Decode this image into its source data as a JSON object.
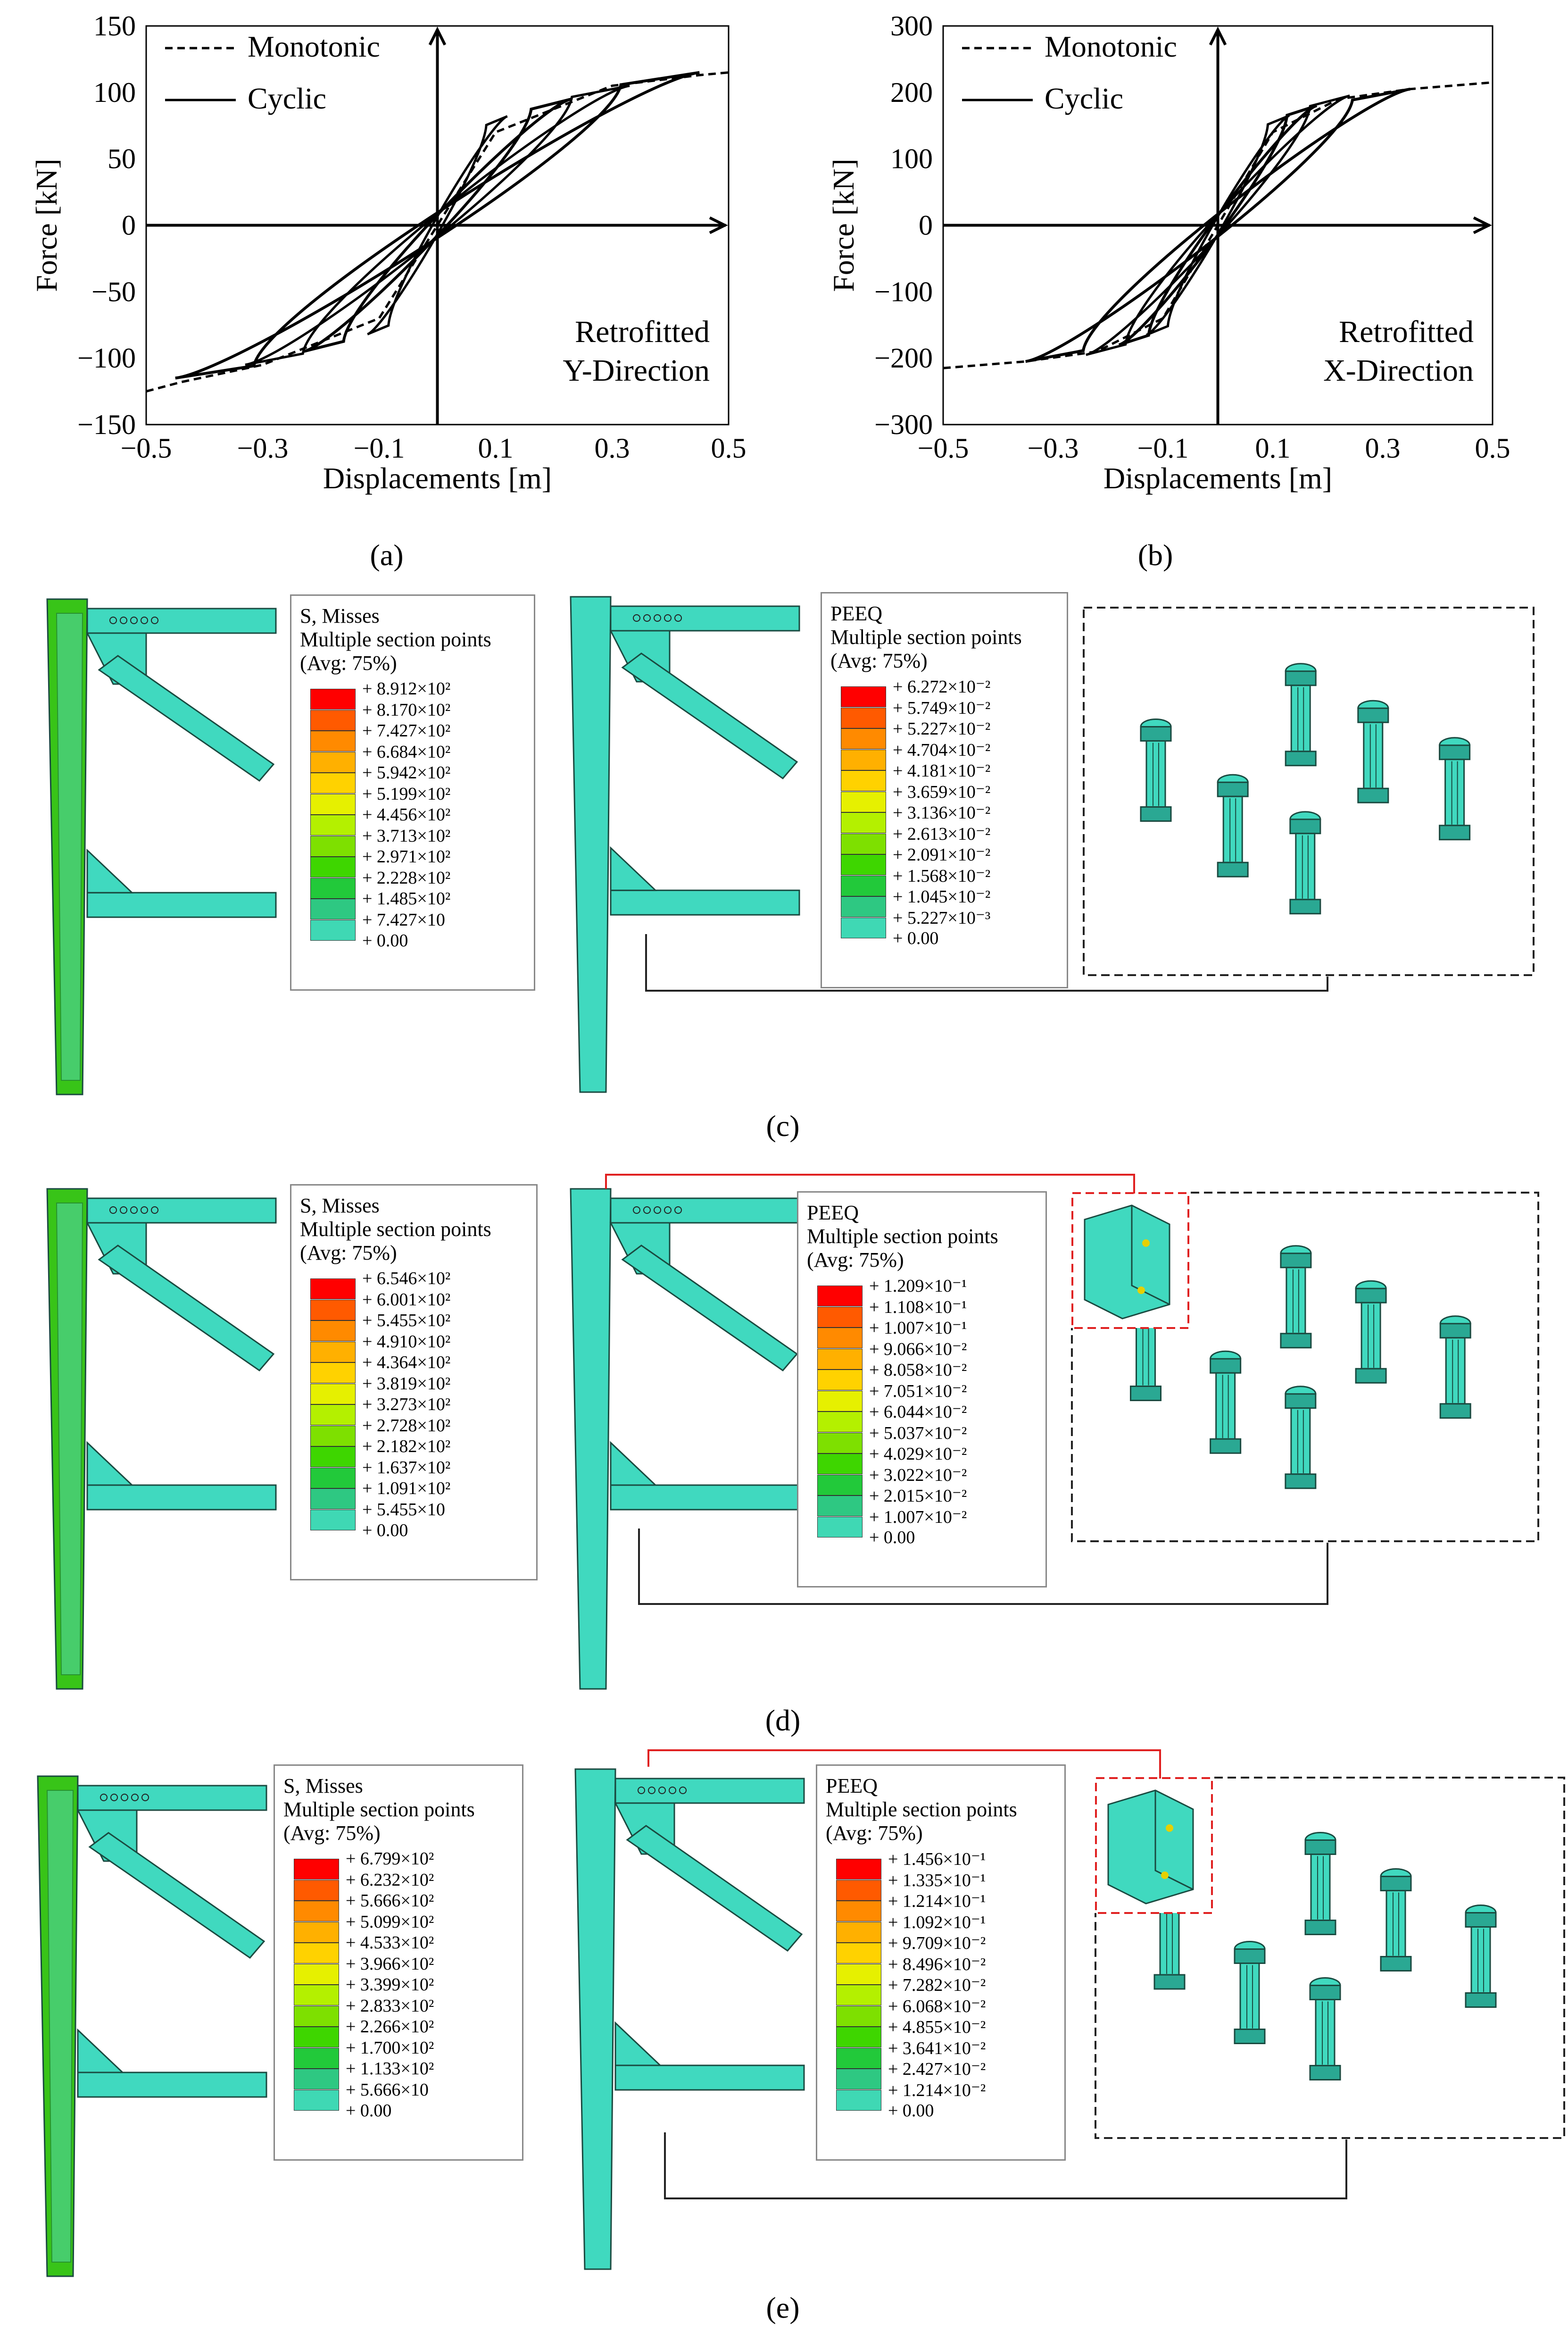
{
  "chart_data": [
    {
      "type": "line",
      "panel": "(a)",
      "xlabel": "Displacements [m]",
      "ylabel": "Force [kN]",
      "xlim": [
        -0.5,
        0.5
      ],
      "ylim": [
        -150,
        150
      ],
      "xticks": [
        "−0.5",
        "−0.3",
        "−0.1",
        "0.1",
        "0.3",
        "0.5"
      ],
      "yticks": [
        "150",
        "100",
        "50",
        "0",
        "−50",
        "−100",
        "−150"
      ],
      "annotation": [
        "Retrofitted",
        "Y-Direction"
      ],
      "legend": [
        "Monotonic",
        "Cyclic"
      ],
      "series": [
        {
          "name": "Monotonic",
          "x": [
            -0.5,
            -0.44,
            -0.3,
            -0.1,
            0.0,
            0.1,
            0.3,
            0.45,
            0.5
          ],
          "y": [
            -125,
            -118,
            -105,
            -70,
            0,
            70,
            105,
            113,
            115
          ]
        },
        {
          "name": "Cyclic",
          "loops": [
            {
              "dmax": 0.12,
              "fmax": 82
            },
            {
              "dmax": 0.23,
              "fmax": 95
            },
            {
              "dmax": 0.33,
              "fmax": 105
            },
            {
              "dmax": 0.45,
              "fmax": 115
            }
          ]
        }
      ]
    },
    {
      "type": "line",
      "panel": "(b)",
      "xlabel": "Displacements [m]",
      "ylabel": "Force [kN]",
      "xlim": [
        -0.5,
        0.5
      ],
      "ylim": [
        -300,
        300
      ],
      "xticks": [
        "−0.5",
        "−0.3",
        "−0.1",
        "0.1",
        "0.3",
        "0.5"
      ],
      "yticks": [
        "300",
        "200",
        "100",
        "0",
        "−100",
        "−200",
        "−300"
      ],
      "annotation": [
        "Retrofitted",
        "X-Direction"
      ],
      "legend": [
        "Monotonic",
        "Cyclic"
      ],
      "series": [
        {
          "name": "Monotonic",
          "x": [
            -0.5,
            -0.35,
            -0.22,
            -0.1,
            0.0,
            0.1,
            0.22,
            0.35,
            0.5
          ],
          "y": [
            -215,
            -205,
            -190,
            -140,
            0,
            140,
            190,
            205,
            215
          ]
        },
        {
          "name": "Cyclic",
          "loops": [
            {
              "dmax": 0.13,
              "fmax": 165
            },
            {
              "dmax": 0.18,
              "fmax": 180
            },
            {
              "dmax": 0.24,
              "fmax": 195
            },
            {
              "dmax": 0.35,
              "fmax": 205
            }
          ]
        }
      ]
    }
  ],
  "captions": {
    "a": "(a)",
    "b": "(b)",
    "c": "(c)",
    "d": "(d)",
    "e": "(e)"
  },
  "colors": {
    "scale": [
      "#ff0000",
      "#ff5a00",
      "#ff8a00",
      "#ffb000",
      "#ffd200",
      "#e6f000",
      "#b4f000",
      "#7ee000",
      "#3ed600",
      "#22c93a",
      "#2ec882",
      "#3fd8b4",
      "#2af0e8"
    ],
    "steel": "#40d9bf",
    "steel_dark": "#2aa893",
    "stress_green": "#38c418"
  },
  "icons": {
    "bolt": "bolt-cylinder-icon"
  },
  "legends": {
    "c_stress": {
      "title": "S, Misses",
      "sub": "Multiple section points",
      "avg": "(Avg: 75%)",
      "values": [
        "+ 8.912×10²",
        "+ 8.170×10²",
        "+ 7.427×10²",
        "+ 6.684×10²",
        "+ 5.942×10²",
        "+ 5.199×10²",
        "+ 4.456×10²",
        "+ 3.713×10²",
        "+ 2.971×10²",
        "+ 2.228×10²",
        "+ 1.485×10²",
        "+ 7.427×10",
        "+ 0.00"
      ]
    },
    "c_peeq": {
      "title": "PEEQ",
      "sub": "Multiple section points",
      "avg": "(Avg: 75%)",
      "values": [
        "+ 6.272×10⁻²",
        "+ 5.749×10⁻²",
        "+ 5.227×10⁻²",
        "+ 4.704×10⁻²",
        "+ 4.181×10⁻²",
        "+ 3.659×10⁻²",
        "+ 3.136×10⁻²",
        "+ 2.613×10⁻²",
        "+ 2.091×10⁻²",
        "+ 1.568×10⁻²",
        "+ 1.045×10⁻²",
        "+ 5.227×10⁻³",
        "+ 0.00"
      ]
    },
    "d_stress": {
      "title": "S, Misses",
      "sub": "Multiple section points",
      "avg": "(Avg: 75%)",
      "values": [
        "+ 6.546×10²",
        "+ 6.001×10²",
        "+ 5.455×10²",
        "+ 4.910×10²",
        "+ 4.364×10²",
        "+ 3.819×10²",
        "+ 3.273×10²",
        "+ 2.728×10²",
        "+ 2.182×10²",
        "+ 1.637×10²",
        "+ 1.091×10²",
        "+ 5.455×10",
        "+ 0.00"
      ]
    },
    "d_peeq": {
      "title": "PEEQ",
      "sub": "Multiple section points",
      "avg": "(Avg: 75%)",
      "values": [
        "+ 1.209×10⁻¹",
        "+ 1.108×10⁻¹",
        "+ 1.007×10⁻¹",
        "+ 9.066×10⁻²",
        "+ 8.058×10⁻²",
        "+ 7.051×10⁻²",
        "+ 6.044×10⁻²",
        "+ 5.037×10⁻²",
        "+ 4.029×10⁻²",
        "+ 3.022×10⁻²",
        "+ 2.015×10⁻²",
        "+ 1.007×10⁻²",
        "+ 0.00"
      ]
    },
    "e_stress": {
      "title": "S, Misses",
      "sub": "Multiple section points",
      "avg": "(Avg: 75%)",
      "values": [
        "+ 6.799×10²",
        "+ 6.232×10²",
        "+ 5.666×10²",
        "+ 5.099×10²",
        "+ 4.533×10²",
        "+ 3.966×10²",
        "+ 3.399×10²",
        "+ 2.833×10²",
        "+ 2.266×10²",
        "+ 1.700×10²",
        "+ 1.133×10²",
        "+ 5.666×10",
        "+ 0.00"
      ]
    },
    "e_peeq": {
      "title": "PEEQ",
      "sub": "Multiple section points",
      "avg": "(Avg: 75%)",
      "values": [
        "+ 1.456×10⁻¹",
        "+ 1.335×10⁻¹",
        "+ 1.214×10⁻¹",
        "+ 1.092×10⁻¹",
        "+ 9.709×10⁻²",
        "+ 8.496×10⁻²",
        "+ 7.282×10⁻²",
        "+ 6.068×10⁻²",
        "+ 4.855×10⁻²",
        "+ 3.641×10⁻²",
        "+ 2.427×10⁻²",
        "+ 1.214×10⁻²",
        "+ 0.00"
      ]
    }
  }
}
